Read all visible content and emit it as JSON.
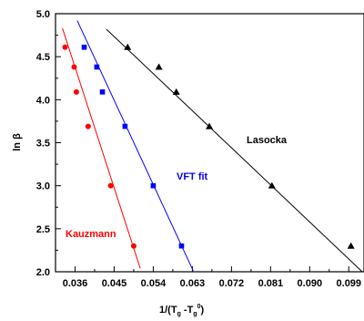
{
  "chart_data": {
    "type": "scatter",
    "title": "",
    "xlabel": "1/(T",
    "xlabel_sub1": "g",
    "xlabel_mid": " -T",
    "xlabel_sub2": "g",
    "xlabel_sup2": "0",
    "xlabel_end": ")",
    "ylabel": "ln β",
    "xlim": [
      0.0315,
      0.1025
    ],
    "ylim": [
      2.0,
      5.0
    ],
    "xticks": [
      0.036,
      0.045,
      0.054,
      0.063,
      0.072,
      0.081,
      0.09,
      0.099
    ],
    "xtick_labels": [
      "0.036",
      "0.045",
      "0.054",
      "0.063",
      "0.072",
      "0.081",
      "0.090",
      "0.099"
    ],
    "yticks": [
      2.0,
      2.5,
      3.0,
      3.5,
      4.0,
      4.5,
      5.0
    ],
    "ytick_labels": [
      "2.0",
      "2.5",
      "3.0",
      "3.5",
      "4.0",
      "4.5",
      "5.0"
    ],
    "grid": false,
    "series": [
      {
        "name": "Kauzmann",
        "color": "#ff0000",
        "marker": "circle",
        "points": [
          {
            "x": 0.0337,
            "y": 4.61
          },
          {
            "x": 0.0358,
            "y": 4.38
          },
          {
            "x": 0.0363,
            "y": 4.09
          },
          {
            "x": 0.039,
            "y": 3.69
          },
          {
            "x": 0.0442,
            "y": 3.0
          },
          {
            "x": 0.0495,
            "y": 2.3
          }
        ],
        "fit": [
          {
            "x": 0.0331,
            "y": 4.83
          },
          {
            "x": 0.051,
            "y": 2.04
          }
        ]
      },
      {
        "name": "VFT fit",
        "color": "#0000ff",
        "marker": "square",
        "points": [
          {
            "x": 0.0381,
            "y": 4.61
          },
          {
            "x": 0.041,
            "y": 4.38
          },
          {
            "x": 0.0423,
            "y": 4.09
          },
          {
            "x": 0.0475,
            "y": 3.69
          },
          {
            "x": 0.054,
            "y": 3.0
          },
          {
            "x": 0.0605,
            "y": 2.3
          }
        ],
        "fit": [
          {
            "x": 0.0365,
            "y": 4.92
          },
          {
            "x": 0.0632,
            "y": 2.01
          }
        ]
      },
      {
        "name": "Lasocka",
        "color": "#000000",
        "marker": "triangle",
        "points": [
          {
            "x": 0.0481,
            "y": 4.61
          },
          {
            "x": 0.0553,
            "y": 4.38
          },
          {
            "x": 0.0593,
            "y": 4.09
          },
          {
            "x": 0.0669,
            "y": 3.69
          },
          {
            "x": 0.0813,
            "y": 3.0
          },
          {
            "x": 0.0995,
            "y": 2.3
          }
        ],
        "fit": [
          {
            "x": 0.0432,
            "y": 4.82
          },
          {
            "x": 0.1025,
            "y": 1.98
          }
        ]
      }
    ]
  }
}
